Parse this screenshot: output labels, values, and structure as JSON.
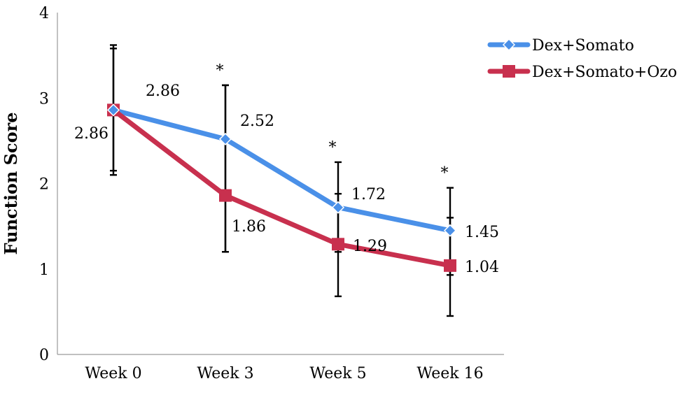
{
  "chart_data": {
    "type": "line",
    "title": "",
    "xlabel": "",
    "ylabel": "Function Score",
    "ylim": [
      0,
      4
    ],
    "yticks": [
      "0",
      "1",
      "2",
      "3",
      "4"
    ],
    "categories": [
      "Week 0",
      "Week 3",
      "Week 5",
      "Week 16"
    ],
    "legend_position": "top-right",
    "grid": false,
    "significance_marks": [
      "",
      "*",
      "*",
      "*"
    ],
    "series": [
      {
        "name": "Dex+Somato",
        "color": "#4a90e8",
        "marker": "diamond",
        "values": [
          2.86,
          2.52,
          1.72,
          1.45
        ],
        "labels": [
          "2.86",
          "2.52",
          "1.72",
          "1.45"
        ],
        "error_low": [
          2.15,
          1.2,
          1.2,
          0.93
        ],
        "error_high": [
          3.58,
          3.15,
          2.25,
          1.95
        ]
      },
      {
        "name": "Dex+Somato+Ozo",
        "color": "#c8304e",
        "marker": "square",
        "values": [
          2.86,
          1.86,
          1.29,
          1.04
        ],
        "labels": [
          "2.86",
          "1.86",
          "1.29",
          "1.04"
        ],
        "error_low": [
          2.1,
          1.2,
          0.68,
          0.45
        ],
        "error_high": [
          3.62,
          3.15,
          1.88,
          1.6
        ]
      }
    ]
  }
}
